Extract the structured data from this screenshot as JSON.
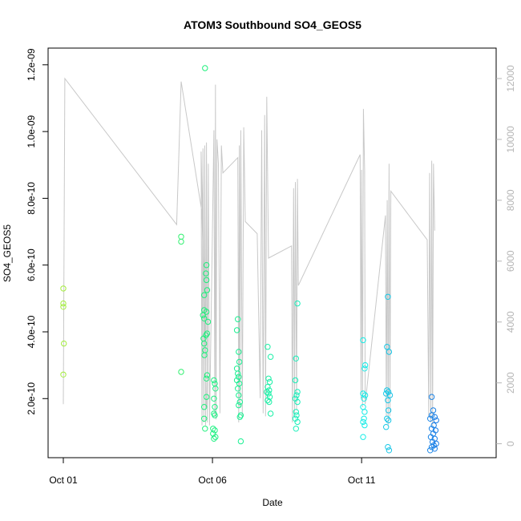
{
  "chart_data": {
    "type": "scatter",
    "title": "ATOM3 Southbound SO4_GEOS5",
    "xlabel": "Date",
    "ylabel": "SO4_GEOS5",
    "x_unit": "days",
    "xlim": [
      0.0,
      14.0
    ],
    "ylim": [
      2.3e-11,
      1.25e-09
    ],
    "x_ticks": [
      {
        "value": 0,
        "label": "Oct 01"
      },
      {
        "value": 5,
        "label": "Oct 06"
      },
      {
        "value": 10,
        "label": "Oct 11"
      }
    ],
    "y_ticks": [
      {
        "value": 2e-10,
        "label": "2.0e-10"
      },
      {
        "value": 4e-10,
        "label": "4.0e-10"
      },
      {
        "value": 6e-10,
        "label": "6.0e-10"
      },
      {
        "value": 8e-10,
        "label": "8.0e-10"
      },
      {
        "value": 1e-09,
        "label": "1.0e-09"
      },
      {
        "value": 1.2e-09,
        "label": "1.2e-09"
      }
    ],
    "y2_ticks": [
      {
        "value": 0,
        "label": "0"
      },
      {
        "value": 2000,
        "label": "2000"
      },
      {
        "value": 4000,
        "label": "4000"
      },
      {
        "value": 6000,
        "label": "6000"
      },
      {
        "value": 8000,
        "label": "8000"
      },
      {
        "value": 10000,
        "label": "10000"
      },
      {
        "value": 12000,
        "label": "12000"
      }
    ],
    "y2lim": [
      -300,
      13000
    ],
    "altitude_color": "#c8c8c8",
    "colors": {
      "start": "#a4ee3c",
      "mid": "#1bf07a",
      "late": "#16efe6",
      "end": "#1a7ce6"
    },
    "series": [
      {
        "values": [
          [
            0.0,
            5.3e-10
          ],
          [
            0.0,
            4.85e-10
          ],
          [
            0.0,
            4.75e-10
          ],
          [
            0.02,
            3.65e-10
          ],
          [
            0.0,
            2.72e-10
          ],
          [
            3.95,
            6.85e-10
          ],
          [
            3.95,
            6.7e-10
          ],
          [
            3.95,
            2.8e-10
          ],
          [
            4.75,
            1.19e-09
          ],
          [
            4.8,
            6e-10
          ],
          [
            4.78,
            5.75e-10
          ],
          [
            4.8,
            5.55e-10
          ],
          [
            4.82,
            5.25e-10
          ],
          [
            4.72,
            5.1e-10
          ],
          [
            4.72,
            4.65e-10
          ],
          [
            4.8,
            4.6e-10
          ],
          [
            4.68,
            4.5e-10
          ],
          [
            4.72,
            4.4e-10
          ],
          [
            4.85,
            4.3e-10
          ],
          [
            4.82,
            3.95e-10
          ],
          [
            4.78,
            3.9e-10
          ],
          [
            4.7,
            3.8e-10
          ],
          [
            4.72,
            3.65e-10
          ],
          [
            4.75,
            3.45e-10
          ],
          [
            4.73,
            3.3e-10
          ],
          [
            4.82,
            2.7e-10
          ],
          [
            4.8,
            2.6e-10
          ],
          [
            4.8,
            2.05e-10
          ],
          [
            4.72,
            1.75e-10
          ],
          [
            4.72,
            1.4e-10
          ],
          [
            4.75,
            1.1e-10
          ],
          [
            5.05,
            2.55e-10
          ],
          [
            5.08,
            2.45e-10
          ],
          [
            5.1,
            2.3e-10
          ],
          [
            5.05,
            2e-10
          ],
          [
            5.08,
            1.75e-10
          ],
          [
            5.05,
            1.55e-10
          ],
          [
            5.08,
            1.5e-10
          ],
          [
            5.02,
            1.1e-10
          ],
          [
            5.08,
            1.05e-10
          ],
          [
            5.02,
            9.5e-11
          ],
          [
            5.1,
            8.5e-11
          ],
          [
            5.05,
            8e-11
          ],
          [
            5.85,
            4.38e-10
          ],
          [
            5.82,
            4.05e-10
          ],
          [
            5.88,
            3.4e-10
          ],
          [
            5.9,
            3.1e-10
          ],
          [
            5.82,
            2.9e-10
          ],
          [
            5.85,
            2.75e-10
          ],
          [
            5.88,
            2.65e-10
          ],
          [
            5.82,
            2.55e-10
          ],
          [
            5.9,
            2.45e-10
          ],
          [
            5.85,
            2.3e-10
          ],
          [
            5.88,
            2.1e-10
          ],
          [
            5.92,
            1.9e-10
          ],
          [
            5.88,
            1.8e-10
          ],
          [
            5.95,
            1.5e-10
          ],
          [
            5.92,
            1.45e-10
          ],
          [
            5.95,
            7.2e-11
          ],
          [
            6.85,
            3.55e-10
          ],
          [
            6.95,
            3.25e-10
          ],
          [
            6.88,
            2.6e-10
          ],
          [
            6.92,
            2.5e-10
          ],
          [
            6.85,
            2.35e-10
          ],
          [
            6.9,
            2.25e-10
          ],
          [
            6.82,
            2.2e-10
          ],
          [
            6.88,
            2.15e-10
          ],
          [
            6.92,
            2.05e-10
          ],
          [
            6.85,
            1.95e-10
          ],
          [
            6.9,
            1.9e-10
          ],
          [
            6.95,
            1.55e-10
          ],
          [
            7.85,
            4.85e-10
          ],
          [
            7.8,
            3.2e-10
          ],
          [
            7.78,
            2.55e-10
          ],
          [
            7.85,
            2.2e-10
          ],
          [
            7.82,
            2.1e-10
          ],
          [
            7.78,
            2e-10
          ],
          [
            7.85,
            1.9e-10
          ],
          [
            7.8,
            1.6e-10
          ],
          [
            7.82,
            1.5e-10
          ],
          [
            7.78,
            1.4e-10
          ],
          [
            7.85,
            1.3e-10
          ],
          [
            7.8,
            1.1e-10
          ],
          [
            10.05,
            3.75e-10
          ],
          [
            10.12,
            3e-10
          ],
          [
            10.1,
            2.9e-10
          ],
          [
            10.05,
            2.15e-10
          ],
          [
            10.12,
            2.1e-10
          ],
          [
            10.08,
            2e-10
          ],
          [
            10.05,
            1.75e-10
          ],
          [
            10.1,
            1.6e-10
          ],
          [
            10.08,
            1.4e-10
          ],
          [
            10.05,
            1.3e-10
          ],
          [
            10.1,
            1.2e-10
          ],
          [
            10.05,
            8.5e-11
          ],
          [
            10.88,
            5.05e-10
          ],
          [
            10.85,
            3.55e-10
          ],
          [
            10.92,
            3.4e-10
          ],
          [
            10.85,
            2.25e-10
          ],
          [
            10.9,
            2.2e-10
          ],
          [
            10.82,
            2.15e-10
          ],
          [
            10.95,
            2.1e-10
          ],
          [
            10.88,
            1.95e-10
          ],
          [
            10.9,
            1.65e-10
          ],
          [
            10.85,
            1.4e-10
          ],
          [
            10.9,
            1.35e-10
          ],
          [
            10.82,
            1.15e-10
          ],
          [
            10.88,
            5.5e-11
          ],
          [
            10.92,
            4.5e-11
          ],
          [
            12.35,
            2.05e-10
          ],
          [
            12.4,
            1.65e-10
          ],
          [
            12.35,
            1.5e-10
          ],
          [
            12.45,
            1.45e-10
          ],
          [
            12.3,
            1.4e-10
          ],
          [
            12.5,
            1.35e-10
          ],
          [
            12.42,
            1.2e-10
          ],
          [
            12.35,
            1.1e-10
          ],
          [
            12.48,
            1.05e-10
          ],
          [
            12.4,
            9.5e-11
          ],
          [
            12.32,
            8.5e-11
          ],
          [
            12.45,
            8e-11
          ],
          [
            12.38,
            7e-11
          ],
          [
            12.5,
            6.5e-11
          ],
          [
            12.42,
            6e-11
          ],
          [
            12.35,
            5.5e-11
          ],
          [
            12.45,
            5e-11
          ],
          [
            12.3,
            4.5e-11
          ]
        ]
      },
      {
        "axis": "right",
        "values": [
          [
            0.0,
            1300
          ],
          [
            0.05,
            12000
          ],
          [
            3.8,
            7200
          ],
          [
            3.95,
            11900
          ],
          [
            4.65,
            7600
          ],
          [
            4.8,
            1200
          ],
          [
            4.62,
            9600
          ],
          [
            4.65,
            600
          ],
          [
            4.68,
            9700
          ],
          [
            4.71,
            700
          ],
          [
            4.74,
            9800
          ],
          [
            4.77,
            600
          ],
          [
            4.8,
            9900
          ],
          [
            4.83,
            700
          ],
          [
            4.86,
            9200
          ],
          [
            4.9,
            600
          ],
          [
            5.05,
            10300
          ],
          [
            5.08,
            900
          ],
          [
            5.1,
            11800
          ],
          [
            5.12,
            800
          ],
          [
            5.15,
            10000
          ],
          [
            5.2,
            9200
          ],
          [
            5.25,
            1000
          ],
          [
            5.3,
            9800
          ],
          [
            5.35,
            8900
          ],
          [
            5.85,
            9400
          ],
          [
            5.88,
            700
          ],
          [
            5.9,
            9800
          ],
          [
            5.92,
            1200
          ],
          [
            5.95,
            10300
          ],
          [
            6.0,
            900
          ],
          [
            6.05,
            10400
          ],
          [
            6.1,
            7300
          ],
          [
            6.5,
            6900
          ],
          [
            6.6,
            1500
          ],
          [
            6.65,
            10300
          ],
          [
            6.7,
            1000
          ],
          [
            6.75,
            10800
          ],
          [
            6.78,
            900
          ],
          [
            6.82,
            11400
          ],
          [
            6.88,
            6100
          ],
          [
            7.65,
            6500
          ],
          [
            7.68,
            700
          ],
          [
            7.72,
            8400
          ],
          [
            7.75,
            900
          ],
          [
            7.78,
            8600
          ],
          [
            7.82,
            1100
          ],
          [
            7.85,
            8700
          ],
          [
            7.88,
            5200
          ],
          [
            9.95,
            9500
          ],
          [
            9.98,
            1500
          ],
          [
            10.0,
            9000
          ],
          [
            10.03,
            1200
          ],
          [
            10.06,
            11000
          ],
          [
            10.1,
            9000
          ],
          [
            10.12,
            1300
          ],
          [
            10.8,
            7500
          ],
          [
            10.83,
            900
          ],
          [
            10.86,
            8000
          ],
          [
            10.89,
            600
          ],
          [
            10.92,
            9200
          ],
          [
            10.95,
            900
          ],
          [
            10.98,
            8300
          ],
          [
            12.2,
            6700
          ],
          [
            12.25,
            900
          ],
          [
            12.28,
            8900
          ],
          [
            12.32,
            700
          ],
          [
            12.35,
            9300
          ],
          [
            12.38,
            600
          ],
          [
            12.41,
            9200
          ],
          [
            12.45,
            7000
          ]
        ]
      }
    ]
  }
}
